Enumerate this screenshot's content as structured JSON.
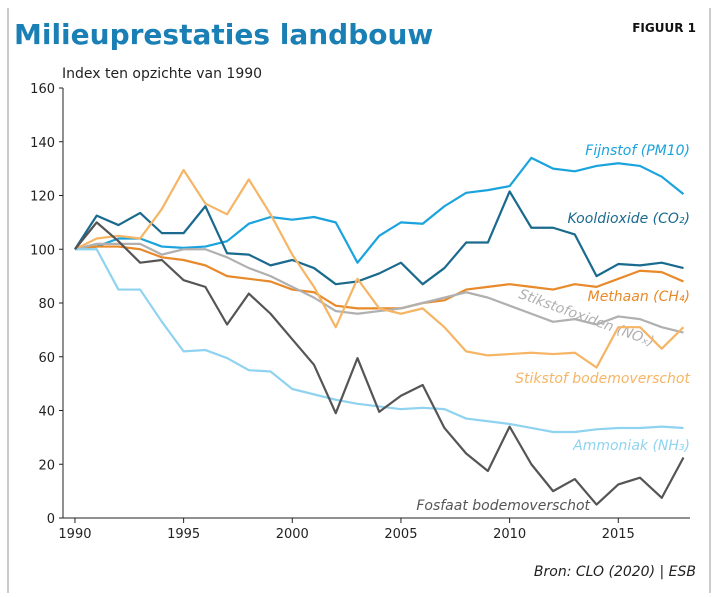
{
  "chart_data": {
    "type": "line",
    "title": "Milieuprestaties landbouw",
    "figure_label": "FIGUUR 1",
    "y_label": "Index ten opzichte van 1990",
    "source": "Bron: CLO (2020) | ESB",
    "x": [
      1990,
      1991,
      1992,
      1993,
      1994,
      1995,
      1996,
      1997,
      1998,
      1999,
      2000,
      2001,
      2002,
      2003,
      2004,
      2005,
      2006,
      2007,
      2008,
      2009,
      2010,
      2011,
      2012,
      2013,
      2014,
      2015,
      2016,
      2017,
      2018
    ],
    "xlim": [
      1989.45,
      2018.3
    ],
    "xticks": [
      1990,
      1995,
      2000,
      2005,
      2010,
      2015
    ],
    "ylim": [
      0,
      160
    ],
    "yticks": [
      0,
      20,
      40,
      60,
      80,
      100,
      120,
      140,
      160
    ],
    "series": [
      {
        "name": "Fijnstof (PM10)",
        "color": "#1aa3dc",
        "values": [
          100,
          101,
          104,
          104,
          101,
          100.5,
          101,
          103,
          109.5,
          112,
          111,
          112,
          110,
          95,
          105,
          110,
          109.5,
          116,
          121,
          122,
          123.5,
          134,
          130,
          129,
          131,
          132,
          131,
          127,
          120.5
        ]
      },
      {
        "name": "Kooldioxide (CO₂)",
        "color": "#1a6a8e",
        "values": [
          100,
          112.5,
          109,
          113.5,
          106,
          106,
          116,
          98.5,
          98,
          94,
          96,
          93,
          87,
          88,
          91,
          95,
          87,
          93,
          102.5,
          102.5,
          121.5,
          108,
          108,
          105.5,
          90,
          94.5,
          94,
          95,
          93
        ]
      },
      {
        "name": "Methaan (CH₄)",
        "color": "#e8892a",
        "values": [
          100,
          101,
          101,
          100,
          97,
          96,
          94,
          90,
          89,
          88,
          85,
          84,
          79,
          78,
          78,
          78,
          80,
          81,
          85,
          86,
          87,
          86,
          85,
          87,
          86,
          89,
          92,
          91.5,
          88
        ]
      },
      {
        "name": "Stikstofoxiden (NOₓ)",
        "color": "#b0b0b0",
        "values": [
          100,
          102,
          102,
          102,
          98,
          100,
          100,
          97,
          93,
          90,
          86,
          82,
          77,
          76,
          77,
          78,
          80,
          82,
          84,
          82,
          79,
          76,
          73,
          74,
          72,
          75,
          74,
          71,
          69
        ]
      },
      {
        "name": "Stikstof bodemoverschot",
        "color": "#f5b565",
        "values": [
          100,
          104,
          105,
          104,
          115,
          129.5,
          117,
          113,
          126,
          113,
          98,
          86,
          71,
          89,
          78,
          76,
          78,
          71,
          62,
          60.5,
          61,
          61.5,
          61,
          61.5,
          56,
          71,
          71,
          63,
          71
        ]
      },
      {
        "name": "Ammoniak (NH₃)",
        "color": "#8fd3f0",
        "values": [
          100,
          100,
          85,
          85,
          73,
          62,
          62.5,
          59.5,
          55,
          54.5,
          48,
          46,
          44,
          42.5,
          41.5,
          40.5,
          41,
          40.5,
          37,
          36,
          35,
          33.5,
          32,
          32,
          33,
          33.5,
          33.5,
          34,
          33.5
        ]
      },
      {
        "name": "Fosfaat bodemoverschot",
        "color": "#555555",
        "values": [
          100,
          110,
          103,
          95,
          96,
          88.5,
          86,
          72,
          83.5,
          76,
          66.5,
          57,
          39,
          59.5,
          39.5,
          45.5,
          49.5,
          33.5,
          24,
          17.5,
          34,
          20,
          10,
          14.5,
          5,
          12.5,
          15,
          7.5,
          22.5
        ]
      }
    ]
  }
}
